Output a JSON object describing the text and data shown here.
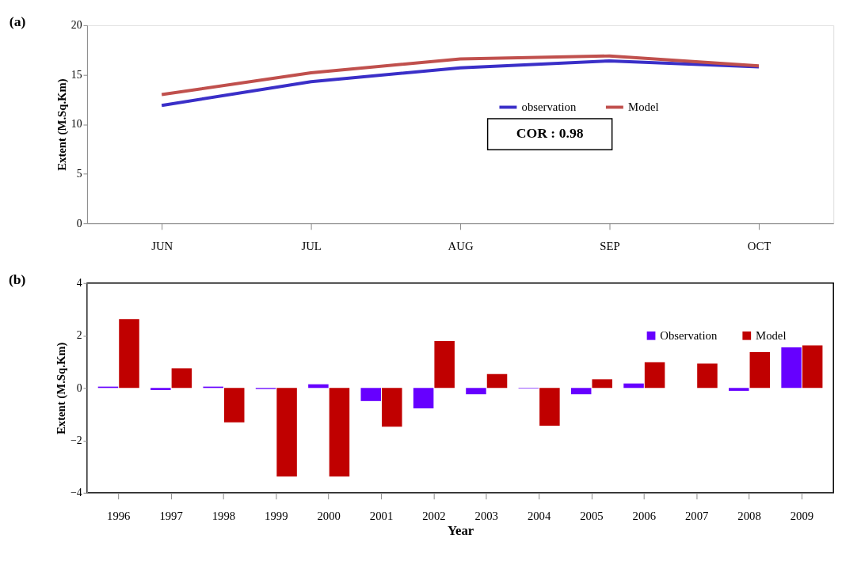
{
  "chart_data": [
    {
      "type": "line",
      "title": "(a)",
      "ylabel": "Extent (M.Sq.Km)",
      "categories": [
        "JUN",
        "JUL",
        "AUG",
        "SEP",
        "OCT"
      ],
      "series": [
        {
          "name": "observation",
          "color": "#3a2fc8",
          "values": [
            11.9,
            14.3,
            15.7,
            16.4,
            15.8
          ]
        },
        {
          "name": "Model",
          "color": "#c0504d",
          "values": [
            13.0,
            15.2,
            16.6,
            16.9,
            15.9
          ]
        }
      ],
      "ylim": [
        0,
        20
      ],
      "yticks": [
        0,
        5,
        10,
        15,
        20
      ],
      "grid": false,
      "legend": "right",
      "marker": "none",
      "line_style": "solid",
      "annotations": [
        "COR : 0.98"
      ]
    },
    {
      "type": "bar",
      "title": "(b)",
      "xlabel": "Year",
      "ylabel": "Extent (M.Sq.Km)",
      "categories": [
        "1996",
        "1997",
        "1998",
        "1999",
        "2000",
        "2001",
        "2002",
        "2003",
        "2004",
        "2005",
        "2006",
        "2007",
        "2008",
        "2009"
      ],
      "series": [
        {
          "name": "Observation",
          "color": "#6600ff",
          "values": [
            0.05,
            -0.08,
            0.05,
            -0.04,
            0.14,
            -0.5,
            -0.78,
            -0.24,
            -0.02,
            -0.24,
            0.17,
            0.0,
            -0.11,
            1.55
          ]
        },
        {
          "name": "Model",
          "color": "#c00000",
          "values": [
            2.63,
            0.75,
            -1.31,
            -3.38,
            -3.38,
            -1.48,
            1.79,
            0.53,
            -1.44,
            0.33,
            0.98,
            0.93,
            1.37,
            1.62
          ]
        }
      ],
      "ylim": [
        -4,
        4
      ],
      "yticks": [
        -4,
        -2,
        0,
        2,
        4
      ],
      "grid": false,
      "legend": "top right"
    }
  ]
}
